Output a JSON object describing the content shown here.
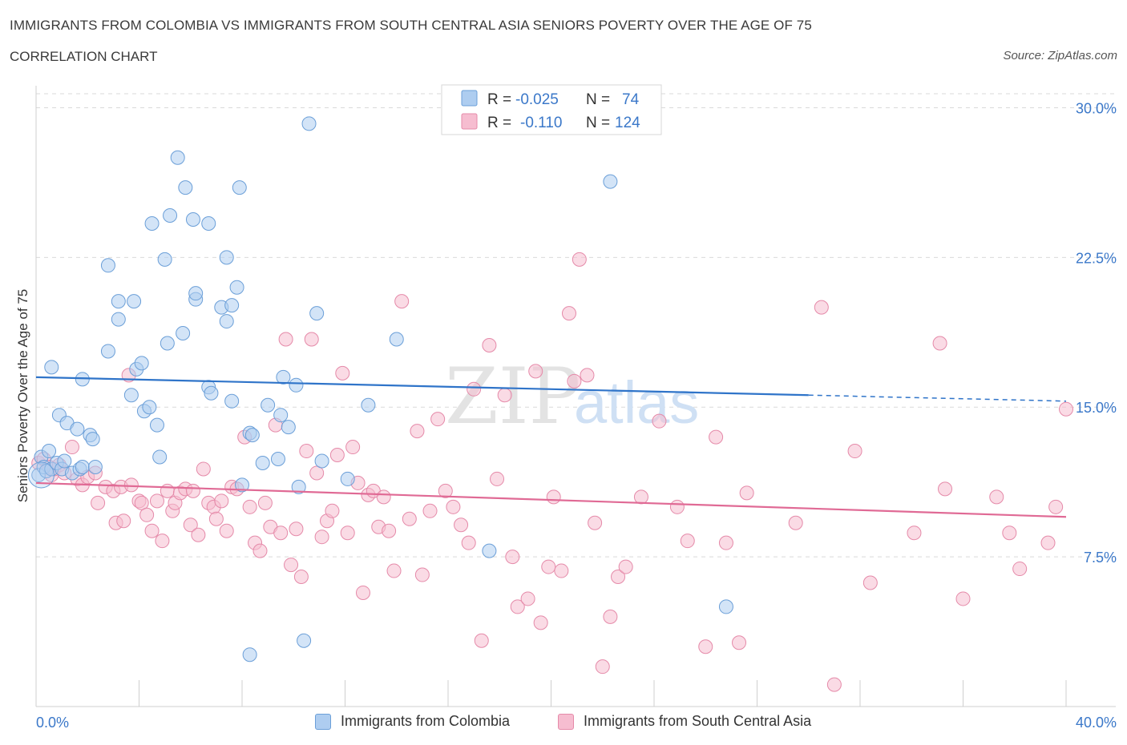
{
  "header": {
    "title": "IMMIGRANTS FROM COLOMBIA VS IMMIGRANTS FROM SOUTH CENTRAL ASIA SENIORS POVERTY OVER THE AGE OF 75",
    "subtitle": "CORRELATION CHART",
    "source": "Source: ZipAtlas.com"
  },
  "watermark": {
    "zip": "ZIP",
    "atlas": "atlas"
  },
  "legend_top": [
    {
      "r_label": "R =",
      "r_value": "-0.025",
      "n_label": "N =",
      "n_value": "74"
    },
    {
      "r_label": "R =",
      "r_value": "-0.110",
      "n_label": "N =",
      "n_value": "124"
    }
  ],
  "colors": {
    "blue_fill": "#aecdf0",
    "blue_stroke": "#6b9fd8",
    "blue_line": "#2f74c9",
    "pink_fill": "#f6bdd0",
    "pink_stroke": "#e58aa9",
    "pink_line": "#e06a95",
    "tick_text": "#3b78c9",
    "grid": "#d9d9d9"
  },
  "chart_data": {
    "type": "scatter",
    "title": "IMMIGRANTS FROM COLOMBIA VS IMMIGRANTS FROM SOUTH CENTRAL ASIA SENIORS POVERTY OVER THE AGE OF 75",
    "xlabel": "",
    "ylabel": "Seniors Poverty Over the Age of 75",
    "xlim": [
      0,
      40
    ],
    "ylim": [
      0,
      30.7
    ],
    "x_tick_labels": [
      "0.0%",
      "40.0%"
    ],
    "y_ticks": [
      7.5,
      15.0,
      22.5,
      30.0
    ],
    "y_tick_labels": [
      "7.5%",
      "15.0%",
      "22.5%",
      "30.0%"
    ],
    "grid": "horizontal dashed",
    "legend_placement": "top-center and bottom",
    "series": [
      {
        "name": "Immigrants from Colombia",
        "color": "#6b9fd8",
        "trend": {
          "x": [
            0,
            30.0
          ],
          "y": [
            16.5,
            15.6
          ],
          "dashed_extension_to_x": 40,
          "dashed_end_y": 15.3
        },
        "points": [
          [
            0.1,
            11.6
          ],
          [
            0.2,
            12.5
          ],
          [
            0.3,
            12.0
          ],
          [
            0.4,
            11.8
          ],
          [
            0.5,
            12.8
          ],
          [
            0.6,
            11.9
          ],
          [
            0.8,
            12.2
          ],
          [
            0.9,
            14.6
          ],
          [
            0.6,
            17.0
          ],
          [
            1.0,
            11.9
          ],
          [
            1.1,
            12.3
          ],
          [
            1.2,
            14.2
          ],
          [
            1.4,
            11.7
          ],
          [
            1.6,
            13.9
          ],
          [
            1.7,
            11.9
          ],
          [
            1.8,
            12.0
          ],
          [
            2.1,
            13.6
          ],
          [
            2.2,
            13.4
          ],
          [
            1.8,
            16.4
          ],
          [
            2.3,
            12.0
          ],
          [
            2.8,
            17.8
          ],
          [
            3.2,
            19.4
          ],
          [
            2.8,
            22.1
          ],
          [
            3.2,
            20.3
          ],
          [
            3.8,
            20.3
          ],
          [
            3.7,
            15.6
          ],
          [
            3.9,
            16.9
          ],
          [
            4.1,
            17.2
          ],
          [
            4.2,
            14.8
          ],
          [
            4.4,
            15.0
          ],
          [
            4.7,
            14.1
          ],
          [
            4.8,
            12.5
          ],
          [
            4.5,
            24.2
          ],
          [
            5.2,
            24.6
          ],
          [
            5.0,
            22.4
          ],
          [
            5.1,
            18.2
          ],
          [
            5.7,
            18.7
          ],
          [
            5.5,
            27.5
          ],
          [
            5.8,
            26.0
          ],
          [
            6.1,
            24.4
          ],
          [
            6.2,
            20.4
          ],
          [
            6.2,
            20.7
          ],
          [
            6.7,
            16.0
          ],
          [
            6.8,
            15.7
          ],
          [
            6.7,
            24.2
          ],
          [
            7.2,
            20.0
          ],
          [
            7.6,
            20.1
          ],
          [
            7.4,
            19.3
          ],
          [
            7.4,
            22.5
          ],
          [
            7.6,
            15.3
          ],
          [
            7.8,
            21.0
          ],
          [
            7.9,
            26.0
          ],
          [
            8.0,
            11.1
          ],
          [
            8.3,
            13.7
          ],
          [
            8.4,
            13.6
          ],
          [
            8.8,
            12.2
          ],
          [
            9.0,
            15.1
          ],
          [
            9.4,
            12.4
          ],
          [
            9.5,
            14.6
          ],
          [
            9.6,
            16.5
          ],
          [
            9.8,
            14.0
          ],
          [
            10.1,
            16.1
          ],
          [
            10.2,
            11.0
          ],
          [
            10.6,
            29.2
          ],
          [
            10.9,
            19.7
          ],
          [
            11.1,
            12.3
          ],
          [
            12.1,
            11.4
          ],
          [
            12.9,
            15.1
          ],
          [
            14.0,
            18.4
          ],
          [
            17.6,
            7.8
          ],
          [
            22.3,
            26.3
          ],
          [
            26.8,
            5.0
          ],
          [
            10.4,
            3.3
          ],
          [
            8.3,
            2.6
          ]
        ]
      },
      {
        "name": "Immigrants from South Central Asia",
        "color": "#e58aa9",
        "trend": {
          "x": [
            0,
            40
          ],
          "y": [
            11.2,
            9.5
          ]
        },
        "points": [
          [
            0.1,
            12.2
          ],
          [
            0.3,
            12.4
          ],
          [
            0.5,
            12.0
          ],
          [
            0.6,
            11.6
          ],
          [
            0.7,
            11.9
          ],
          [
            0.9,
            12.1
          ],
          [
            1.1,
            11.7
          ],
          [
            1.4,
            13.0
          ],
          [
            1.6,
            11.4
          ],
          [
            1.8,
            11.1
          ],
          [
            2.0,
            11.5
          ],
          [
            2.3,
            11.7
          ],
          [
            2.4,
            10.2
          ],
          [
            2.7,
            11.0
          ],
          [
            3.0,
            10.8
          ],
          [
            3.1,
            9.2
          ],
          [
            3.3,
            11.0
          ],
          [
            3.4,
            9.3
          ],
          [
            3.6,
            16.6
          ],
          [
            3.7,
            11.1
          ],
          [
            4.0,
            10.3
          ],
          [
            4.1,
            10.2
          ],
          [
            4.3,
            9.6
          ],
          [
            4.5,
            8.8
          ],
          [
            4.7,
            10.3
          ],
          [
            4.9,
            8.3
          ],
          [
            5.1,
            10.8
          ],
          [
            5.3,
            9.8
          ],
          [
            5.4,
            10.2
          ],
          [
            5.6,
            10.7
          ],
          [
            5.8,
            10.9
          ],
          [
            6.0,
            9.1
          ],
          [
            6.1,
            10.8
          ],
          [
            6.3,
            8.6
          ],
          [
            6.5,
            11.9
          ],
          [
            6.7,
            10.2
          ],
          [
            6.9,
            10.0
          ],
          [
            7.0,
            9.4
          ],
          [
            7.2,
            10.3
          ],
          [
            7.4,
            8.8
          ],
          [
            7.6,
            11.0
          ],
          [
            7.8,
            10.9
          ],
          [
            8.1,
            13.5
          ],
          [
            8.3,
            10.0
          ],
          [
            8.5,
            8.2
          ],
          [
            8.7,
            7.8
          ],
          [
            8.9,
            10.2
          ],
          [
            9.1,
            9.0
          ],
          [
            9.3,
            14.1
          ],
          [
            9.5,
            8.7
          ],
          [
            9.7,
            18.4
          ],
          [
            9.9,
            7.1
          ],
          [
            10.1,
            8.9
          ],
          [
            10.3,
            6.5
          ],
          [
            10.5,
            12.8
          ],
          [
            10.7,
            18.4
          ],
          [
            10.9,
            11.7
          ],
          [
            11.1,
            8.5
          ],
          [
            11.3,
            9.3
          ],
          [
            11.5,
            9.8
          ],
          [
            11.7,
            12.6
          ],
          [
            11.9,
            16.7
          ],
          [
            12.1,
            8.7
          ],
          [
            12.3,
            13.0
          ],
          [
            12.5,
            11.2
          ],
          [
            12.7,
            5.7
          ],
          [
            12.9,
            10.6
          ],
          [
            13.1,
            10.8
          ],
          [
            13.3,
            9.0
          ],
          [
            13.5,
            10.5
          ],
          [
            13.7,
            8.8
          ],
          [
            13.9,
            6.8
          ],
          [
            14.2,
            20.3
          ],
          [
            14.5,
            9.4
          ],
          [
            14.8,
            13.8
          ],
          [
            15.0,
            6.6
          ],
          [
            15.3,
            9.8
          ],
          [
            15.6,
            14.4
          ],
          [
            15.9,
            10.8
          ],
          [
            16.2,
            10.0
          ],
          [
            16.5,
            9.1
          ],
          [
            16.8,
            8.2
          ],
          [
            17.0,
            15.9
          ],
          [
            17.3,
            3.3
          ],
          [
            17.6,
            18.1
          ],
          [
            17.9,
            11.4
          ],
          [
            18.2,
            15.6
          ],
          [
            18.5,
            7.5
          ],
          [
            18.7,
            5.0
          ],
          [
            19.1,
            5.4
          ],
          [
            19.4,
            16.8
          ],
          [
            19.6,
            4.2
          ],
          [
            19.9,
            7.0
          ],
          [
            20.1,
            10.5
          ],
          [
            20.4,
            6.8
          ],
          [
            20.7,
            19.7
          ],
          [
            20.9,
            16.3
          ],
          [
            21.1,
            22.4
          ],
          [
            21.4,
            16.6
          ],
          [
            21.7,
            9.2
          ],
          [
            22.0,
            2.0
          ],
          [
            22.3,
            4.5
          ],
          [
            22.6,
            6.5
          ],
          [
            22.9,
            7.0
          ],
          [
            23.5,
            10.5
          ],
          [
            24.2,
            14.3
          ],
          [
            24.9,
            10.0
          ],
          [
            25.3,
            8.3
          ],
          [
            26.0,
            3.0
          ],
          [
            26.4,
            13.5
          ],
          [
            26.8,
            8.2
          ],
          [
            27.3,
            3.2
          ],
          [
            27.6,
            10.7
          ],
          [
            29.5,
            9.2
          ],
          [
            30.5,
            20.0
          ],
          [
            31.8,
            12.8
          ],
          [
            32.4,
            6.2
          ],
          [
            34.1,
            8.7
          ],
          [
            35.1,
            18.2
          ],
          [
            35.3,
            10.9
          ],
          [
            36.0,
            5.4
          ],
          [
            37.3,
            10.5
          ],
          [
            37.8,
            8.7
          ],
          [
            38.2,
            6.9
          ]
        ]
      },
      {
        "name": "Immigrants from South Central Asia (extra)",
        "color": "#e58aa9",
        "points": [
          [
            39.3,
            8.2
          ],
          [
            39.6,
            10.0
          ],
          [
            31.0,
            1.1
          ],
          [
            40.0,
            14.9
          ]
        ]
      }
    ]
  },
  "legend_bottom": [
    {
      "label": "Immigrants from Colombia"
    },
    {
      "label": "Immigrants from South Central Asia"
    }
  ]
}
